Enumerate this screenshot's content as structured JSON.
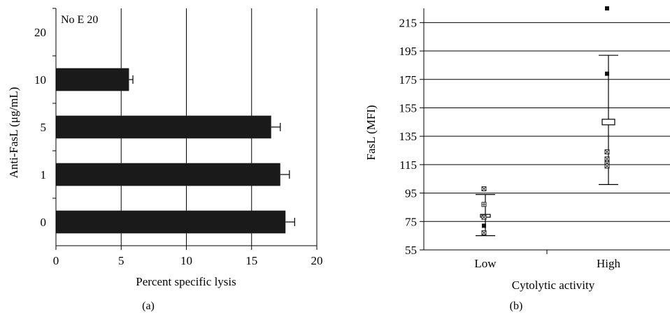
{
  "chart_data": [
    {
      "type": "bar",
      "orientation": "horizontal",
      "panel_label": "(a)",
      "annotation": "No E 20",
      "xlabel": "Percent specific lysis",
      "ylabel": "Anti-FasL (μg/mL)",
      "xlim": [
        0,
        20
      ],
      "xticks": [
        "0",
        "5",
        "10",
        "15",
        "20"
      ],
      "categories": [
        "0",
        "1",
        "5",
        "10",
        "20"
      ],
      "values": [
        17.6,
        17.2,
        16.5,
        5.6,
        null
      ],
      "errors": [
        0.7,
        0.7,
        0.7,
        0.3,
        null
      ],
      "grid": "vertical",
      "bar_color": "#1a1a1a"
    },
    {
      "type": "scatter",
      "panel_label": "(b)",
      "xlabel": "Cytolytic activity",
      "ylabel": "FasL (MFI)",
      "ylim": [
        55,
        225
      ],
      "yticks": [
        "55",
        "75",
        "95",
        "115",
        "135",
        "155",
        "175",
        "195",
        "215"
      ],
      "categories": [
        "Low",
        "High"
      ],
      "grid": "horizontal",
      "groups": [
        {
          "category": "Low",
          "points": [
            {
              "y": 98,
              "marker": "box-x"
            },
            {
              "y": 87,
              "marker": "box-plus"
            },
            {
              "y": 78,
              "marker": "box-x"
            },
            {
              "y": 72,
              "marker": "filled"
            },
            {
              "y": 67,
              "marker": "box-x"
            }
          ],
          "mean": 79,
          "error_low": 65,
          "error_high": 94
        },
        {
          "category": "High",
          "points": [
            {
              "y": 225,
              "marker": "filled"
            },
            {
              "y": 179,
              "marker": "filled"
            },
            {
              "y": 124,
              "marker": "box-x"
            },
            {
              "y": 119,
              "marker": "box-x"
            },
            {
              "y": 116,
              "marker": "box-x"
            },
            {
              "y": 114,
              "marker": "box-x"
            }
          ],
          "mean": 145,
          "error_low": 101,
          "error_high": 192
        }
      ]
    }
  ]
}
